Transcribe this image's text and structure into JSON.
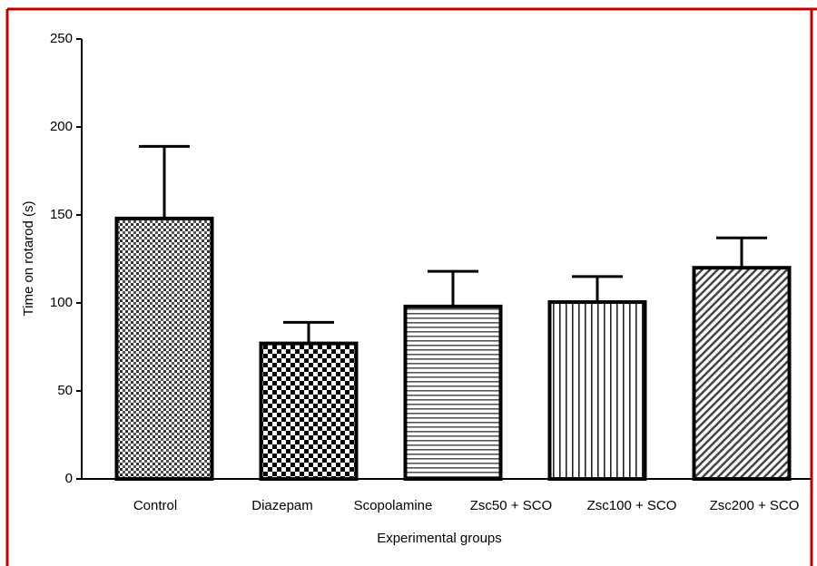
{
  "chart_data": {
    "type": "bar",
    "y_label": "Time on rotarod (s)",
    "x_label": "Experimental groups",
    "categories": [
      "Control",
      "Diazepam",
      "Scopolamine",
      "Zsc50 + SCO",
      "Zsc100 + SCO",
      "Zsc200 + SCO"
    ],
    "values": [
      148,
      77,
      98,
      null,
      100.5,
      120
    ],
    "errors": [
      41,
      12,
      20,
      null,
      14.5,
      17
    ],
    "color": "#000000",
    "ylim": [
      0,
      250
    ],
    "yticks": [
      0,
      50,
      100,
      150,
      200,
      250
    ]
  }
}
